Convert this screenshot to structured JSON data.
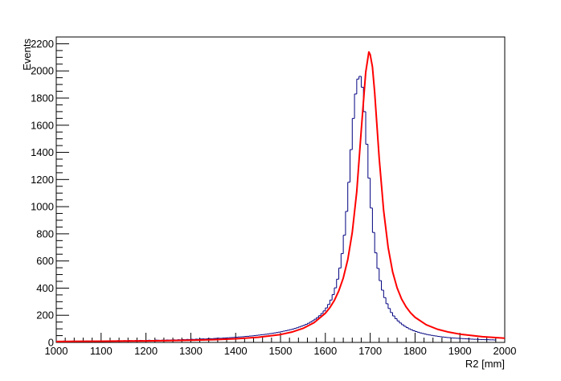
{
  "chart_data": {
    "type": "line",
    "xlabel": "R2 [mm]",
    "ylabel": "Events",
    "xlim": [
      1000,
      2000
    ],
    "ylim": [
      0,
      2250
    ],
    "x_ticks": [
      1000,
      1100,
      1200,
      1300,
      1400,
      1500,
      1600,
      1700,
      1800,
      1900,
      2000
    ],
    "y_ticks": [
      0,
      200,
      400,
      600,
      800,
      1000,
      1200,
      1400,
      1600,
      1800,
      2000,
      2200
    ],
    "grid": false,
    "series": [
      {
        "style": "histogram-step",
        "color": "#000080",
        "bin_width": 5,
        "bin_starts": [
          1000,
          1005,
          1010,
          1015,
          1020,
          1025,
          1030,
          1035,
          1040,
          1045,
          1050,
          1055,
          1060,
          1065,
          1070,
          1075,
          1080,
          1085,
          1090,
          1095,
          1100,
          1105,
          1110,
          1115,
          1120,
          1125,
          1130,
          1135,
          1140,
          1145,
          1150,
          1155,
          1160,
          1165,
          1170,
          1175,
          1180,
          1185,
          1190,
          1195,
          1200,
          1205,
          1210,
          1215,
          1220,
          1225,
          1230,
          1235,
          1240,
          1245,
          1250,
          1255,
          1260,
          1265,
          1270,
          1275,
          1280,
          1285,
          1290,
          1295,
          1300,
          1305,
          1310,
          1315,
          1320,
          1325,
          1330,
          1335,
          1340,
          1345,
          1350,
          1355,
          1360,
          1365,
          1370,
          1375,
          1380,
          1385,
          1390,
          1395,
          1400,
          1405,
          1410,
          1415,
          1420,
          1425,
          1430,
          1435,
          1440,
          1445,
          1450,
          1455,
          1460,
          1465,
          1470,
          1475,
          1480,
          1485,
          1490,
          1495,
          1500,
          1505,
          1510,
          1515,
          1520,
          1525,
          1530,
          1535,
          1540,
          1545,
          1550,
          1555,
          1560,
          1565,
          1570,
          1575,
          1580,
          1585,
          1590,
          1595,
          1600,
          1605,
          1610,
          1615,
          1620,
          1625,
          1630,
          1635,
          1640,
          1645,
          1650,
          1655,
          1660,
          1665,
          1670,
          1675,
          1680,
          1685,
          1690,
          1695,
          1700,
          1705,
          1710,
          1715,
          1720,
          1725,
          1730,
          1735,
          1740,
          1745,
          1750,
          1755,
          1760,
          1765,
          1770,
          1775,
          1780,
          1785,
          1790,
          1795,
          1800,
          1805,
          1810,
          1815,
          1820,
          1825,
          1830,
          1835,
          1840,
          1845,
          1850,
          1855,
          1860,
          1865,
          1870,
          1875,
          1880,
          1885,
          1890,
          1895,
          1900,
          1905,
          1910,
          1915,
          1920,
          1925,
          1930,
          1935,
          1940,
          1945,
          1950,
          1955,
          1960,
          1965,
          1970,
          1975,
          1980,
          1985,
          1990,
          1995
        ],
        "values": [
          8,
          9,
          7,
          10,
          8,
          9,
          8,
          10,
          9,
          8,
          9,
          10,
          9,
          11,
          10,
          9,
          10,
          11,
          9,
          10,
          11,
          10,
          12,
          11,
          10,
          12,
          11,
          13,
          12,
          11,
          13,
          12,
          14,
          13,
          12,
          14,
          13,
          15,
          14,
          13,
          15,
          16,
          14,
          15,
          17,
          16,
          15,
          17,
          16,
          18,
          17,
          18,
          19,
          18,
          20,
          19,
          21,
          20,
          22,
          21,
          23,
          22,
          24,
          23,
          25,
          26,
          25,
          27,
          28,
          27,
          29,
          30,
          31,
          30,
          32,
          33,
          34,
          35,
          36,
          37,
          38,
          40,
          41,
          42,
          44,
          45,
          47,
          48,
          50,
          52,
          54,
          56,
          58,
          60,
          62,
          65,
          67,
          70,
          73,
          76,
          79,
          83,
          86,
          90,
          94,
          98,
          103,
          108,
          114,
          120,
          126,
          133,
          141,
          150,
          160,
          171,
          183,
          197,
          213,
          232,
          254,
          280,
          312,
          352,
          402,
          466,
          548,
          654,
          790,
          965,
          1180,
          1420,
          1650,
          1830,
          1940,
          1960,
          1880,
          1700,
          1460,
          1210,
          990,
          810,
          660,
          545,
          455,
          385,
          330,
          285,
          250,
          220,
          195,
          175,
          158,
          143,
          130,
          119,
          109,
          100,
          93,
          86,
          80,
          75,
          70,
          66,
          62,
          58,
          55,
          52,
          49,
          47,
          44,
          42,
          40,
          38,
          36,
          35,
          33,
          32,
          31,
          30,
          29,
          28,
          27,
          26,
          25,
          24,
          23,
          23,
          22,
          21,
          21,
          20,
          20,
          19,
          19,
          18
        ]
      },
      {
        "style": "fit-curve",
        "color": "#ff0000",
        "x": [
          1000,
          1050,
          1100,
          1150,
          1200,
          1250,
          1300,
          1350,
          1400,
          1450,
          1500,
          1525,
          1550,
          1575,
          1600,
          1610,
          1620,
          1630,
          1640,
          1650,
          1660,
          1670,
          1680,
          1690,
          1697,
          1700,
          1705,
          1710,
          1720,
          1730,
          1740,
          1750,
          1760,
          1770,
          1780,
          1790,
          1800,
          1825,
          1850,
          1875,
          1900,
          1950,
          2000
        ],
        "y": [
          7,
          8,
          9,
          10,
          11,
          13,
          16,
          20,
          27,
          38,
          58,
          76,
          103,
          146,
          215,
          256,
          309,
          380,
          475,
          610,
          810,
          1110,
          1560,
          1990,
          2140,
          2120,
          2030,
          1840,
          1360,
          970,
          700,
          520,
          402,
          320,
          262,
          218,
          185,
          130,
          97,
          76,
          61,
          42,
          31
        ]
      }
    ]
  }
}
